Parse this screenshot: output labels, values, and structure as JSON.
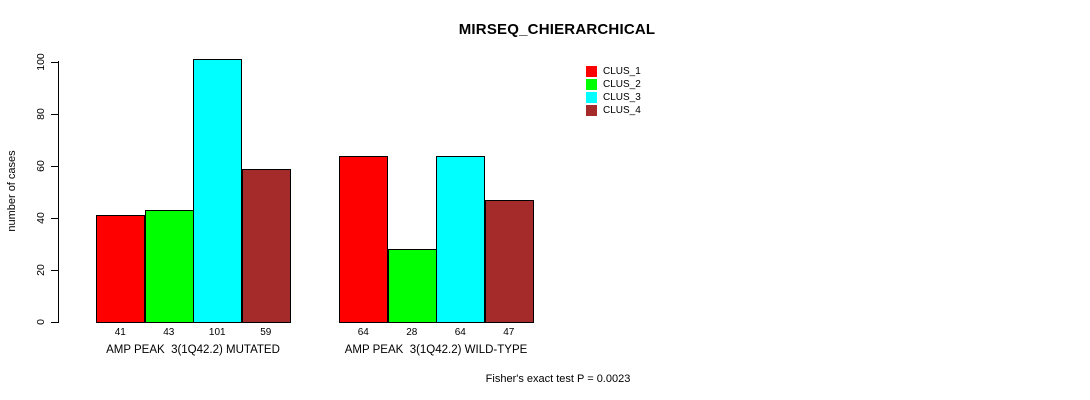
{
  "chart_data": {
    "type": "bar",
    "title": "MIRSEQ_CHIERARCHICAL",
    "ylabel": "number of cases",
    "xlabel": "",
    "ylim": [
      0,
      100
    ],
    "yticks": [
      0,
      20,
      40,
      60,
      80,
      100
    ],
    "grid": false,
    "legend_position": "top-right",
    "series": [
      {
        "name": "CLUS_1",
        "color": "#FF0000"
      },
      {
        "name": "CLUS_2",
        "color": "#00FF00"
      },
      {
        "name": "CLUS_3",
        "color": "#00FFFF"
      },
      {
        "name": "CLUS_4",
        "color": "#A52A2A"
      }
    ],
    "groups": [
      {
        "label": "AMP PEAK  3(1Q42.2) MUTATED",
        "values": [
          41,
          43,
          101,
          59
        ]
      },
      {
        "label": "AMP PEAK  3(1Q42.2) WILD-TYPE",
        "values": [
          64,
          28,
          64,
          47
        ]
      }
    ],
    "bar_value_labels": true,
    "annotation": "Fisher's exact test P = 0.0023"
  }
}
